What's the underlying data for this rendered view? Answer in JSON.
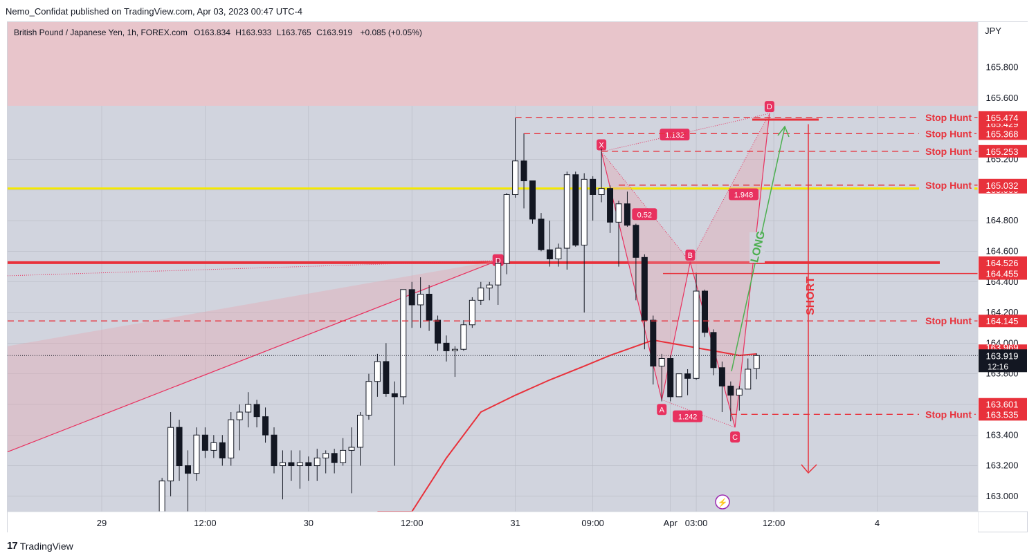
{
  "header": {
    "text": "Nemo_Confidat published on TradingView.com, Apr 03, 2023 00:47 UTC-4"
  },
  "footer": {
    "brand": "TradingView"
  },
  "legend": {
    "symbol": "British Pound / Japanese Yen, 1h, FOREX.com",
    "o_label": "O",
    "o": "163.834",
    "h_label": "H",
    "h": "163.933",
    "l_label": "L",
    "l": "163.765",
    "c_label": "C",
    "c": "163.919",
    "change": "+0.085 (+0.05%)"
  },
  "colors": {
    "up": "#ffffff",
    "down": "#131722",
    "red": "#e8313b",
    "yellow": "#f5e900",
    "zone": "#e8c5cb",
    "pane": "#d1d4de",
    "green": "#4caf50"
  },
  "chart_data": {
    "type": "candlestick",
    "currency": "JPY",
    "ylim": [
      162.9,
      166.3
    ],
    "y_ticks": [
      163.0,
      163.2,
      163.4,
      163.6,
      163.8,
      164.0,
      164.2,
      164.4,
      164.6,
      164.8,
      165.0,
      165.2,
      165.6,
      165.8
    ],
    "y_tick_labels": [
      "163.000",
      "163.200",
      "163.400",
      "163.600",
      "163.800",
      "164.000",
      "164.200",
      "164.400",
      "164.600",
      "164.800",
      "165.000",
      "165.200",
      "165.600",
      "165.800"
    ],
    "x_ticks": [
      {
        "label": "29",
        "i": 0
      },
      {
        "label": "12:00",
        "i": 12
      },
      {
        "label": "30",
        "i": 24
      },
      {
        "label": "12:00",
        "i": 36
      },
      {
        "label": "31",
        "i": 48
      },
      {
        "label": "09:00",
        "i": 57
      },
      {
        "label": "Apr",
        "i": 66
      },
      {
        "label": "03:00",
        "i": 69
      },
      {
        "label": "12:00",
        "i": 78
      },
      {
        "label": "4",
        "i": 90
      }
    ],
    "candles": [
      {
        "i": 7,
        "o": 162.9,
        "h": 163.12,
        "l": 162.9,
        "c": 163.1
      },
      {
        "i": 8,
        "o": 163.1,
        "h": 163.55,
        "l": 163.0,
        "c": 163.45
      },
      {
        "i": 9,
        "o": 163.45,
        "h": 163.5,
        "l": 163.1,
        "c": 163.2
      },
      {
        "i": 10,
        "o": 163.2,
        "h": 163.3,
        "l": 162.9,
        "c": 163.15
      },
      {
        "i": 11,
        "o": 163.15,
        "h": 163.45,
        "l": 163.1,
        "c": 163.4
      },
      {
        "i": 12,
        "o": 163.4,
        "h": 163.45,
        "l": 163.25,
        "c": 163.3
      },
      {
        "i": 13,
        "o": 163.3,
        "h": 163.4,
        "l": 163.25,
        "c": 163.35
      },
      {
        "i": 14,
        "o": 163.35,
        "h": 163.4,
        "l": 163.2,
        "c": 163.25
      },
      {
        "i": 15,
        "o": 163.25,
        "h": 163.55,
        "l": 163.2,
        "c": 163.5
      },
      {
        "i": 16,
        "o": 163.5,
        "h": 163.6,
        "l": 163.3,
        "c": 163.55
      },
      {
        "i": 17,
        "o": 163.55,
        "h": 163.68,
        "l": 163.45,
        "c": 163.6
      },
      {
        "i": 18,
        "o": 163.6,
        "h": 163.63,
        "l": 163.45,
        "c": 163.52
      },
      {
        "i": 19,
        "o": 163.52,
        "h": 163.58,
        "l": 163.35,
        "c": 163.4
      },
      {
        "i": 20,
        "o": 163.4,
        "h": 163.45,
        "l": 163.15,
        "c": 163.2
      },
      {
        "i": 21,
        "o": 163.2,
        "h": 163.3,
        "l": 162.98,
        "c": 163.22
      },
      {
        "i": 22,
        "o": 163.22,
        "h": 163.3,
        "l": 163.1,
        "c": 163.2
      },
      {
        "i": 23,
        "o": 163.2,
        "h": 163.3,
        "l": 163.05,
        "c": 163.22
      },
      {
        "i": 24,
        "o": 163.22,
        "h": 163.26,
        "l": 163.1,
        "c": 163.2
      },
      {
        "i": 25,
        "o": 163.2,
        "h": 163.31,
        "l": 163.1,
        "c": 163.25
      },
      {
        "i": 26,
        "o": 163.25,
        "h": 163.3,
        "l": 163.15,
        "c": 163.28
      },
      {
        "i": 27,
        "o": 163.28,
        "h": 163.31,
        "l": 163.15,
        "c": 163.22
      },
      {
        "i": 28,
        "o": 163.22,
        "h": 163.38,
        "l": 163.2,
        "c": 163.3
      },
      {
        "i": 29,
        "o": 163.3,
        "h": 163.45,
        "l": 163.02,
        "c": 163.32
      },
      {
        "i": 30,
        "o": 163.32,
        "h": 163.55,
        "l": 163.2,
        "c": 163.53
      },
      {
        "i": 31,
        "o": 163.53,
        "h": 163.8,
        "l": 163.5,
        "c": 163.75
      },
      {
        "i": 32,
        "o": 163.75,
        "h": 163.93,
        "l": 163.65,
        "c": 163.88
      },
      {
        "i": 33,
        "o": 163.88,
        "h": 164.0,
        "l": 163.65,
        "c": 163.67
      },
      {
        "i": 34,
        "o": 163.67,
        "h": 163.75,
        "l": 163.2,
        "c": 163.65
      },
      {
        "i": 35,
        "o": 163.65,
        "h": 164.35,
        "l": 163.6,
        "c": 164.35
      },
      {
        "i": 36,
        "o": 164.35,
        "h": 164.4,
        "l": 164.1,
        "c": 164.25
      },
      {
        "i": 37,
        "o": 164.25,
        "h": 164.43,
        "l": 164.1,
        "c": 164.32
      },
      {
        "i": 38,
        "o": 164.32,
        "h": 164.38,
        "l": 164.08,
        "c": 164.15
      },
      {
        "i": 39,
        "o": 164.15,
        "h": 164.18,
        "l": 163.95,
        "c": 164.0
      },
      {
        "i": 40,
        "o": 164.0,
        "h": 164.05,
        "l": 163.88,
        "c": 163.95
      },
      {
        "i": 41,
        "o": 163.95,
        "h": 163.98,
        "l": 163.78,
        "c": 163.96
      },
      {
        "i": 42,
        "o": 163.96,
        "h": 164.15,
        "l": 163.95,
        "c": 164.12
      },
      {
        "i": 43,
        "o": 164.12,
        "h": 164.3,
        "l": 164.1,
        "c": 164.28
      },
      {
        "i": 44,
        "o": 164.28,
        "h": 164.4,
        "l": 164.25,
        "c": 164.36
      },
      {
        "i": 45,
        "o": 164.36,
        "h": 164.4,
        "l": 164.28,
        "c": 164.38
      },
      {
        "i": 46,
        "o": 164.38,
        "h": 164.55,
        "l": 164.25,
        "c": 164.52
      },
      {
        "i": 47,
        "o": 164.52,
        "h": 164.98,
        "l": 164.45,
        "c": 164.97
      },
      {
        "i": 48,
        "o": 164.97,
        "h": 165.47,
        "l": 164.95,
        "c": 165.19
      },
      {
        "i": 49,
        "o": 165.19,
        "h": 165.37,
        "l": 164.88,
        "c": 165.06
      },
      {
        "i": 50,
        "o": 165.06,
        "h": 165.06,
        "l": 164.78,
        "c": 164.81
      },
      {
        "i": 51,
        "o": 164.81,
        "h": 164.85,
        "l": 164.6,
        "c": 164.61
      },
      {
        "i": 52,
        "o": 164.61,
        "h": 164.8,
        "l": 164.5,
        "c": 164.55
      },
      {
        "i": 53,
        "o": 164.55,
        "h": 164.65,
        "l": 164.5,
        "c": 164.62
      },
      {
        "i": 54,
        "o": 164.62,
        "h": 165.12,
        "l": 164.48,
        "c": 165.1
      },
      {
        "i": 55,
        "o": 165.1,
        "h": 165.12,
        "l": 164.63,
        "c": 164.64
      },
      {
        "i": 56,
        "o": 164.64,
        "h": 165.11,
        "l": 164.2,
        "c": 165.07
      },
      {
        "i": 57,
        "o": 165.07,
        "h": 165.09,
        "l": 164.8,
        "c": 164.97
      },
      {
        "i": 58,
        "o": 164.97,
        "h": 165.27,
        "l": 164.92,
        "c": 165.01
      },
      {
        "i": 59,
        "o": 165.01,
        "h": 165.03,
        "l": 164.72,
        "c": 164.79
      },
      {
        "i": 60,
        "o": 164.79,
        "h": 164.93,
        "l": 164.5,
        "c": 164.91
      },
      {
        "i": 61,
        "o": 164.91,
        "h": 164.99,
        "l": 164.76,
        "c": 164.77
      },
      {
        "i": 62,
        "o": 164.77,
        "h": 164.78,
        "l": 164.28,
        "c": 164.56
      },
      {
        "i": 63,
        "o": 164.56,
        "h": 164.58,
        "l": 163.96,
        "c": 164.15
      },
      {
        "i": 64,
        "o": 164.15,
        "h": 164.18,
        "l": 163.73,
        "c": 163.85
      },
      {
        "i": 65,
        "o": 163.85,
        "h": 163.93,
        "l": 163.62,
        "c": 163.9
      },
      {
        "i": 66,
        "o": 163.9,
        "h": 163.92,
        "l": 163.62,
        "c": 163.65
      },
      {
        "i": 67,
        "o": 163.65,
        "h": 163.8,
        "l": 163.65,
        "c": 163.8
      },
      {
        "i": 68,
        "o": 163.8,
        "h": 163.83,
        "l": 163.66,
        "c": 163.77
      },
      {
        "i": 69,
        "o": 163.77,
        "h": 164.46,
        "l": 163.76,
        "c": 164.34
      },
      {
        "i": 70,
        "o": 164.34,
        "h": 164.35,
        "l": 164.04,
        "c": 164.07
      },
      {
        "i": 71,
        "o": 164.07,
        "h": 164.09,
        "l": 163.79,
        "c": 163.84
      },
      {
        "i": 72,
        "o": 163.84,
        "h": 163.88,
        "l": 163.55,
        "c": 163.72
      },
      {
        "i": 73,
        "o": 163.72,
        "h": 163.75,
        "l": 163.49,
        "c": 163.66
      },
      {
        "i": 74,
        "o": 163.66,
        "h": 163.72,
        "l": 163.56,
        "c": 163.7
      },
      {
        "i": 75,
        "o": 163.7,
        "h": 163.9,
        "l": 163.7,
        "c": 163.83
      },
      {
        "i": 76,
        "o": 163.834,
        "h": 163.933,
        "l": 163.765,
        "c": 163.919
      }
    ],
    "ma_line": {
      "color": "#e8313b",
      "points": [
        [
          32,
          162.5
        ],
        [
          36,
          162.9
        ],
        [
          40,
          163.25
        ],
        [
          44,
          163.55
        ],
        [
          48,
          163.66
        ],
        [
          52,
          163.76
        ],
        [
          56,
          163.85
        ],
        [
          59,
          163.92
        ],
        [
          62,
          163.98
        ],
        [
          64,
          164.02
        ],
        [
          66,
          164.0
        ],
        [
          68,
          163.98
        ],
        [
          70,
          163.96
        ],
        [
          72,
          163.94
        ],
        [
          74,
          163.92
        ],
        [
          76,
          163.93
        ]
      ]
    },
    "levels": [
      {
        "value": 165.474,
        "style": "dashed",
        "label": "Stop Hunt",
        "price": "165.474",
        "from": 48
      },
      {
        "value": 165.368,
        "style": "dashed",
        "label": "Stop Hunt",
        "price": "165.368",
        "from": 49
      },
      {
        "value": 165.253,
        "style": "dashed",
        "label": "Stop Hunt",
        "price": "165.253",
        "from": 58
      },
      {
        "value": 165.032,
        "style": "dashed",
        "label": "Stop Hunt",
        "price": "165.032",
        "from": 60
      },
      {
        "value": 164.145,
        "style": "dashed",
        "label": "Stop Hunt",
        "price": "164.145",
        "from": -8
      },
      {
        "value": 163.535,
        "style": "dashed",
        "label": "Stop Hunt",
        "price": "163.535",
        "from": 73
      }
    ],
    "price_tags": [
      {
        "value": 164.526,
        "text": "164.526"
      },
      {
        "value": 164.455,
        "text": "164.455"
      },
      {
        "value": 163.601,
        "text": "163.601"
      }
    ],
    "hidden_tags": [
      {
        "value": 165.429,
        "text": "165.429"
      },
      {
        "value": 165.0,
        "text": "165.000"
      },
      {
        "value": 163.969,
        "text": "163.969"
      }
    ],
    "last_price": {
      "value": 163.919,
      "text": "163.919",
      "countdown": "12:16"
    },
    "supply_zone": [
      165.55,
      166.3
    ],
    "yellow_line": 165.01,
    "red_line": 164.526,
    "harmonic": {
      "points": [
        {
          "name": "X",
          "i": 58,
          "v": 165.25
        },
        {
          "name": "A",
          "i": 65,
          "v": 163.63
        },
        {
          "name": "B",
          "i": 68.3,
          "v": 164.53
        },
        {
          "name": "C",
          "i": 73.5,
          "v": 163.45
        },
        {
          "name": "D",
          "i": 77.5,
          "v": 165.5
        }
      ],
      "ratios": [
        {
          "text": "1.132",
          "i": 66.5,
          "v": 165.36
        },
        {
          "text": "0.52",
          "i": 63,
          "v": 164.84
        },
        {
          "text": "1.948",
          "i": 74.5,
          "v": 164.97
        },
        {
          "text": "1.242",
          "i": 68,
          "v": 163.52
        }
      ]
    },
    "left_pattern": {
      "d_label": "D",
      "d_i": 46,
      "d_v": 164.54
    },
    "annotations": {
      "long": "LONG",
      "short": "SHORT"
    }
  }
}
